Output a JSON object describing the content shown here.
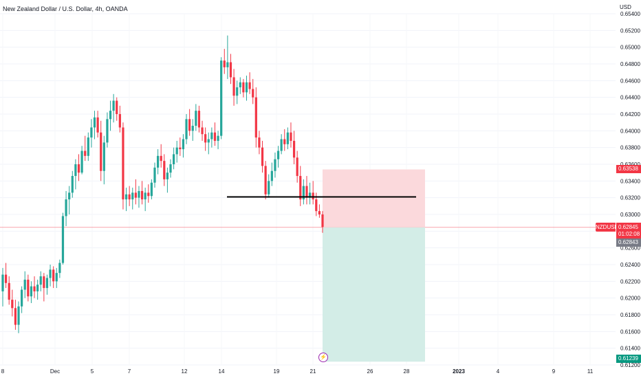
{
  "header": {
    "title": "New Zealand Dollar / U.S. Dollar, 4h, OANDA"
  },
  "price_axis": {
    "currency": "USD",
    "labels": [
      "0.65400",
      "0.65200",
      "0.65000",
      "0.64800",
      "0.64600",
      "0.64400",
      "0.64200",
      "0.64000",
      "0.63800",
      "0.63600",
      "0.63400",
      "0.63200",
      "0.63000",
      "0.62800",
      "0.62600",
      "0.62400",
      "0.62200",
      "0.62000",
      "0.61800",
      "0.61600",
      "0.61400",
      "0.61200"
    ]
  },
  "time_axis": {
    "labels": [
      "8",
      "Dec",
      "5",
      "7",
      "12",
      "14",
      "19",
      "21",
      "26",
      "28",
      "2023",
      "4",
      "9",
      "11"
    ]
  },
  "markers": {
    "stop_price": "0.63538",
    "symbol": "NZDUSD",
    "last_price": "0.62845",
    "countdown": "01:02:08",
    "bid_price": "0.62843",
    "target_price": "0.61239"
  },
  "colors": {
    "up": "#26a69a",
    "down": "#f23645",
    "stop_zone": "#fbd9dc",
    "target_zone": "#d3ede7",
    "level_line": "#000000",
    "bid_badge": "#787b86",
    "target_badge": "#089981",
    "event_marker": "#9c27b0"
  },
  "icons": {
    "event": "lightning-icon"
  },
  "chart_data": {
    "type": "candlestick",
    "symbol": "NZDUSD",
    "timeframe": "4h",
    "ylim": [
      0.612,
      0.655
    ],
    "horizontal_level": 0.6321,
    "long_short_position": {
      "direction": "short",
      "entry": 0.62845,
      "stop": 0.63538,
      "target": 0.61239
    },
    "candles": [
      [
        0.6208,
        0.6236,
        0.619,
        0.6228
      ],
      [
        0.6228,
        0.6242,
        0.6212,
        0.6218
      ],
      [
        0.6218,
        0.6226,
        0.6192,
        0.6198
      ],
      [
        0.6198,
        0.621,
        0.6178,
        0.6188
      ],
      [
        0.6188,
        0.6198,
        0.6162,
        0.6168
      ],
      [
        0.6168,
        0.6196,
        0.6158,
        0.619
      ],
      [
        0.619,
        0.6214,
        0.6182,
        0.621
      ],
      [
        0.621,
        0.6232,
        0.62,
        0.6222
      ],
      [
        0.6222,
        0.6228,
        0.6196,
        0.6202
      ],
      [
        0.6202,
        0.622,
        0.6194,
        0.6214
      ],
      [
        0.6214,
        0.6226,
        0.62,
        0.6208
      ],
      [
        0.6208,
        0.6222,
        0.6198,
        0.6216
      ],
      [
        0.6216,
        0.6232,
        0.6208,
        0.6226
      ],
      [
        0.6226,
        0.623,
        0.6196,
        0.6212
      ],
      [
        0.6212,
        0.6228,
        0.6204,
        0.6224
      ],
      [
        0.6224,
        0.624,
        0.6214,
        0.6234
      ],
      [
        0.6234,
        0.6238,
        0.6212,
        0.622
      ],
      [
        0.622,
        0.6236,
        0.6212,
        0.623
      ],
      [
        0.623,
        0.6246,
        0.6224,
        0.6242
      ],
      [
        0.6242,
        0.6302,
        0.624,
        0.6298
      ],
      [
        0.6298,
        0.6328,
        0.6286,
        0.6318
      ],
      [
        0.6318,
        0.6334,
        0.63,
        0.6326
      ],
      [
        0.6326,
        0.6352,
        0.632,
        0.6346
      ],
      [
        0.6346,
        0.6366,
        0.633,
        0.636
      ],
      [
        0.636,
        0.6372,
        0.634,
        0.635
      ],
      [
        0.635,
        0.6382,
        0.6348,
        0.6376
      ],
      [
        0.6376,
        0.6394,
        0.6364,
        0.637
      ],
      [
        0.637,
        0.6398,
        0.6364,
        0.6392
      ],
      [
        0.6392,
        0.6414,
        0.638,
        0.6404
      ],
      [
        0.6404,
        0.6424,
        0.639,
        0.6416
      ],
      [
        0.6416,
        0.6424,
        0.6392,
        0.6398
      ],
      [
        0.6398,
        0.6412,
        0.634,
        0.6352
      ],
      [
        0.6352,
        0.6394,
        0.6336,
        0.6386
      ],
      [
        0.6386,
        0.6422,
        0.638,
        0.6414
      ],
      [
        0.6414,
        0.6436,
        0.64,
        0.6424
      ],
      [
        0.6424,
        0.6444,
        0.641,
        0.6436
      ],
      [
        0.6436,
        0.644,
        0.6412,
        0.642
      ],
      [
        0.642,
        0.643,
        0.6398,
        0.6404
      ],
      [
        0.6404,
        0.641,
        0.6306,
        0.6318
      ],
      [
        0.6318,
        0.6332,
        0.6304,
        0.6324
      ],
      [
        0.6324,
        0.6334,
        0.631,
        0.6318
      ],
      [
        0.6318,
        0.6332,
        0.6306,
        0.6326
      ],
      [
        0.6326,
        0.6342,
        0.6312,
        0.632
      ],
      [
        0.632,
        0.6334,
        0.6308,
        0.6328
      ],
      [
        0.6328,
        0.634,
        0.6312,
        0.6318
      ],
      [
        0.6318,
        0.6332,
        0.6304,
        0.6326
      ],
      [
        0.6326,
        0.6336,
        0.6314,
        0.6322
      ],
      [
        0.6322,
        0.6342,
        0.6318,
        0.6338
      ],
      [
        0.6338,
        0.6362,
        0.6332,
        0.6356
      ],
      [
        0.6356,
        0.6378,
        0.6348,
        0.637
      ],
      [
        0.637,
        0.6384,
        0.6356,
        0.6364
      ],
      [
        0.6364,
        0.6372,
        0.6334,
        0.6342
      ],
      [
        0.6342,
        0.6356,
        0.6326,
        0.635
      ],
      [
        0.635,
        0.6366,
        0.6344,
        0.636
      ],
      [
        0.636,
        0.638,
        0.6354,
        0.6372
      ],
      [
        0.6372,
        0.6388,
        0.6362,
        0.638
      ],
      [
        0.638,
        0.6392,
        0.637,
        0.6378
      ],
      [
        0.6378,
        0.6396,
        0.6368,
        0.639
      ],
      [
        0.639,
        0.642,
        0.6384,
        0.6414
      ],
      [
        0.6414,
        0.6426,
        0.6394,
        0.64
      ],
      [
        0.64,
        0.6414,
        0.6388,
        0.6406
      ],
      [
        0.6406,
        0.6432,
        0.64,
        0.6424
      ],
      [
        0.6424,
        0.643,
        0.6398,
        0.6404
      ],
      [
        0.6404,
        0.6412,
        0.6388,
        0.6396
      ],
      [
        0.6396,
        0.6404,
        0.6376,
        0.6386
      ],
      [
        0.6386,
        0.6398,
        0.6372,
        0.639
      ],
      [
        0.639,
        0.6404,
        0.638,
        0.6398
      ],
      [
        0.6398,
        0.641,
        0.6382,
        0.6388
      ],
      [
        0.6388,
        0.64,
        0.6378,
        0.6394
      ],
      [
        0.6394,
        0.6488,
        0.639,
        0.6484
      ],
      [
        0.6484,
        0.6498,
        0.6468,
        0.6476
      ],
      [
        0.6476,
        0.6514,
        0.6462,
        0.6482
      ],
      [
        0.6482,
        0.6492,
        0.6456,
        0.6464
      ],
      [
        0.6464,
        0.6474,
        0.643,
        0.6442
      ],
      [
        0.6442,
        0.646,
        0.6432,
        0.6452
      ],
      [
        0.6452,
        0.6464,
        0.6444,
        0.6458
      ],
      [
        0.6458,
        0.6462,
        0.644,
        0.6446
      ],
      [
        0.6446,
        0.6466,
        0.6436,
        0.6458
      ],
      [
        0.6458,
        0.647,
        0.6444,
        0.645
      ],
      [
        0.645,
        0.6462,
        0.6432,
        0.644
      ],
      [
        0.644,
        0.6452,
        0.638,
        0.6392
      ],
      [
        0.6392,
        0.64,
        0.6372,
        0.638
      ],
      [
        0.638,
        0.6388,
        0.635,
        0.6358
      ],
      [
        0.6358,
        0.6364,
        0.6318,
        0.6324
      ],
      [
        0.6324,
        0.6348,
        0.632,
        0.634
      ],
      [
        0.634,
        0.6362,
        0.6334,
        0.6352
      ],
      [
        0.6352,
        0.6374,
        0.6344,
        0.6366
      ],
      [
        0.6366,
        0.6382,
        0.6356,
        0.6376
      ],
      [
        0.6376,
        0.6396,
        0.6372,
        0.639
      ],
      [
        0.639,
        0.6402,
        0.6376,
        0.6384
      ],
      [
        0.6384,
        0.6404,
        0.6378,
        0.6398
      ],
      [
        0.6398,
        0.641,
        0.638,
        0.6388
      ],
      [
        0.6388,
        0.64,
        0.636,
        0.6368
      ],
      [
        0.6368,
        0.6376,
        0.6338,
        0.6346
      ],
      [
        0.6346,
        0.6358,
        0.631,
        0.6318
      ],
      [
        0.6318,
        0.6342,
        0.6312,
        0.6334
      ],
      [
        0.6334,
        0.6346,
        0.6312,
        0.632
      ],
      [
        0.632,
        0.6338,
        0.6312,
        0.6326
      ],
      [
        0.6326,
        0.634,
        0.6312,
        0.6318
      ],
      [
        0.6318,
        0.6326,
        0.6298,
        0.6304
      ],
      [
        0.6304,
        0.6312,
        0.6296,
        0.63
      ],
      [
        0.63,
        0.6304,
        0.6278,
        0.6285
      ]
    ]
  }
}
